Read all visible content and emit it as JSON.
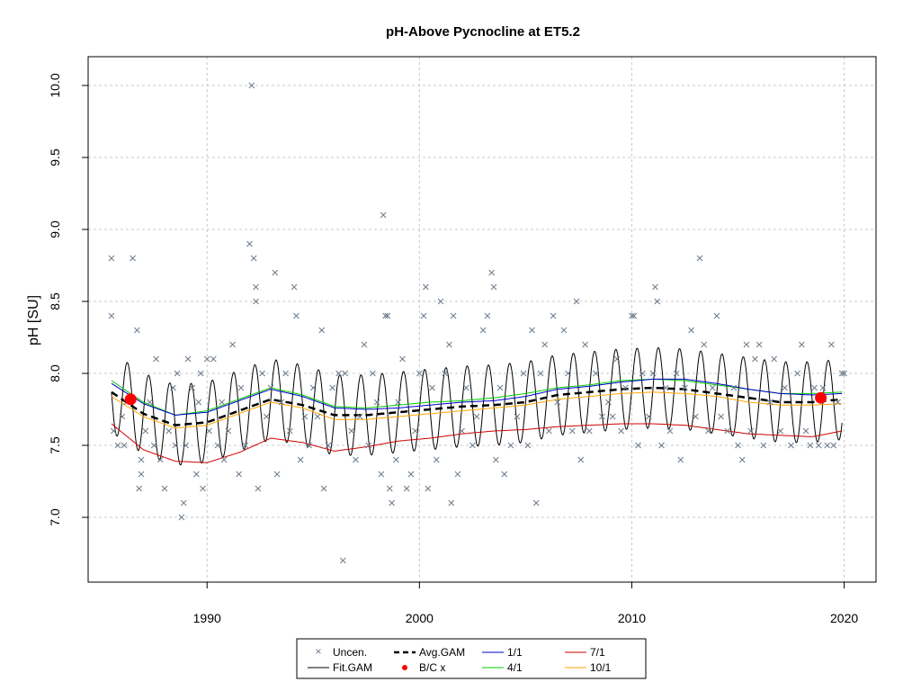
{
  "chart_data": {
    "type": "line",
    "title": "pH-Above Pycnocline at ET5.2",
    "xlabel": "",
    "ylabel": "pH [SU]",
    "xlim": [
      1984.4,
      2021.5
    ],
    "ylim": [
      6.55,
      10.2
    ],
    "x_ticks": [
      1990,
      2000,
      2010,
      2020
    ],
    "y_ticks": [
      7.0,
      7.5,
      8.0,
      8.5,
      9.0,
      9.5,
      10.0
    ],
    "grid": true,
    "legend": {
      "placement": "bottom-center",
      "entries": [
        {
          "label": "Uncen.",
          "symbol": "x",
          "color": "#6b7b8c"
        },
        {
          "label": "Fit.GAM",
          "symbol": "line",
          "color": "#000000"
        },
        {
          "label": "Avg.GAM",
          "symbol": "dashed",
          "color": "#000000"
        },
        {
          "label": "B/C x",
          "symbol": "dot",
          "color": "#ff0000"
        },
        {
          "label": "1/1",
          "symbol": "line",
          "color": "#0000cc"
        },
        {
          "label": "4/1",
          "symbol": "line",
          "color": "#00cc00"
        },
        {
          "label": "7/1",
          "symbol": "line",
          "color": "#cc0000"
        },
        {
          "label": "10/1",
          "symbol": "line",
          "color": "#ffa500"
        }
      ]
    },
    "series": [
      {
        "name": "Avg.GAM",
        "style": "dashed",
        "color": "#000000",
        "x": [
          1985.5,
          1987,
          1988.5,
          1990,
          1991.5,
          1993,
          1994.5,
          1996,
          1997.5,
          1999,
          2000.5,
          2002,
          2003.5,
          2005,
          2006.5,
          2008,
          2009.5,
          2011,
          2012.5,
          2014,
          2015.5,
          2017,
          2018.5,
          2019.9
        ],
        "y": [
          7.87,
          7.72,
          7.64,
          7.66,
          7.74,
          7.82,
          7.78,
          7.71,
          7.71,
          7.73,
          7.75,
          7.77,
          7.78,
          7.8,
          7.85,
          7.87,
          7.89,
          7.9,
          7.89,
          7.86,
          7.83,
          7.8,
          7.8,
          7.82
        ]
      },
      {
        "name": "1/1",
        "style": "solid",
        "color": "#0000cc",
        "x": [
          1985.5,
          1987,
          1988.5,
          1990,
          1991.5,
          1993,
          1994.5,
          1996,
          1997.5,
          1999,
          2000.5,
          2002,
          2003.5,
          2005,
          2006.5,
          2008,
          2009.5,
          2011,
          2012.5,
          2014,
          2015.5,
          2017,
          2018.5,
          2019.9
        ],
        "y": [
          7.93,
          7.79,
          7.71,
          7.73,
          7.81,
          7.89,
          7.84,
          7.76,
          7.75,
          7.76,
          7.78,
          7.8,
          7.81,
          7.84,
          7.89,
          7.91,
          7.94,
          7.96,
          7.96,
          7.93,
          7.89,
          7.86,
          7.85,
          7.86
        ]
      },
      {
        "name": "4/1",
        "style": "solid",
        "color": "#00cc00",
        "x": [
          1985.5,
          1987,
          1988.5,
          1990,
          1991.5,
          1993,
          1994.5,
          1996,
          1997.5,
          1999,
          2000.5,
          2002,
          2003.5,
          2005,
          2006.5,
          2008,
          2009.5,
          2011,
          2012.5,
          2014,
          2015.5,
          2017,
          2018.5,
          2019.9
        ],
        "y": [
          7.95,
          7.8,
          7.71,
          7.74,
          7.82,
          7.9,
          7.85,
          7.77,
          7.76,
          7.78,
          7.8,
          7.81,
          7.83,
          7.86,
          7.9,
          7.92,
          7.95,
          7.96,
          7.95,
          7.92,
          7.89,
          7.86,
          7.86,
          7.87
        ]
      },
      {
        "name": "10/1",
        "style": "solid",
        "color": "#ffa500",
        "x": [
          1985.5,
          1987,
          1988.5,
          1990,
          1991.5,
          1993,
          1994.5,
          1996,
          1997.5,
          1999,
          2000.5,
          2002,
          2003.5,
          2005,
          2006.5,
          2008,
          2009.5,
          2011,
          2012.5,
          2014,
          2015.5,
          2017,
          2018.5,
          2019.9
        ],
        "y": [
          7.84,
          7.7,
          7.62,
          7.64,
          7.72,
          7.8,
          7.76,
          7.68,
          7.68,
          7.7,
          7.72,
          7.74,
          7.76,
          7.78,
          7.82,
          7.84,
          7.86,
          7.87,
          7.86,
          7.84,
          7.8,
          7.78,
          7.78,
          7.79
        ]
      },
      {
        "name": "7/1",
        "style": "solid",
        "color": "#cc0000",
        "x": [
          1985.5,
          1987,
          1988.5,
          1990,
          1991.5,
          1993,
          1994.5,
          1996,
          1997.5,
          1999,
          2000.5,
          2002,
          2003.5,
          2005,
          2006.5,
          2008,
          2009.5,
          2011,
          2012.5,
          2014,
          2015.5,
          2017,
          2018.5,
          2019.9
        ],
        "y": [
          7.65,
          7.47,
          7.39,
          7.38,
          7.45,
          7.55,
          7.52,
          7.46,
          7.49,
          7.53,
          7.55,
          7.58,
          7.6,
          7.61,
          7.63,
          7.64,
          7.65,
          7.65,
          7.64,
          7.61,
          7.58,
          7.57,
          7.56,
          7.6
        ]
      },
      {
        "name": "Fit.GAM",
        "style": "solid",
        "color": "#000000",
        "seasonal_amplitude": 0.28,
        "x": [
          1985.5,
          1987,
          1988.5,
          1990,
          1991.5,
          1993,
          1994.5,
          1996,
          1997.5,
          1999,
          2000.5,
          2002,
          2003.5,
          2005,
          2006.5,
          2008,
          2009.5,
          2011,
          2012.5,
          2014,
          2015.5,
          2017,
          2018.5,
          2019.9
        ],
        "y": [
          7.87,
          7.72,
          7.64,
          7.66,
          7.74,
          7.82,
          7.78,
          7.71,
          7.71,
          7.73,
          7.75,
          7.77,
          7.78,
          7.8,
          7.85,
          7.87,
          7.89,
          7.9,
          7.89,
          7.86,
          7.83,
          7.8,
          7.8,
          7.82
        ]
      }
    ],
    "bc_points": [
      {
        "x": 1986.4,
        "y": 7.82
      },
      {
        "x": 2018.9,
        "y": 7.83
      }
    ],
    "uncensored_points": [
      [
        1985.5,
        8.8
      ],
      [
        1985.5,
        8.4
      ],
      [
        1985.6,
        7.6
      ],
      [
        1985.8,
        7.5
      ],
      [
        1986.0,
        7.7
      ],
      [
        1986.1,
        7.5
      ],
      [
        1986.2,
        7.8
      ],
      [
        1986.5,
        8.8
      ],
      [
        1986.7,
        8.3
      ],
      [
        1986.8,
        7.2
      ],
      [
        1986.9,
        7.3
      ],
      [
        1986.9,
        7.4
      ],
      [
        1987.1,
        7.6
      ],
      [
        1987.3,
        7.8
      ],
      [
        1987.5,
        7.5
      ],
      [
        1987.6,
        8.1
      ],
      [
        1987.8,
        7.4
      ],
      [
        1988.0,
        7.2
      ],
      [
        1988.2,
        7.6
      ],
      [
        1988.4,
        7.9
      ],
      [
        1988.5,
        7.5
      ],
      [
        1988.6,
        8.0
      ],
      [
        1988.8,
        7.0
      ],
      [
        1988.9,
        7.1
      ],
      [
        1989.0,
        7.5
      ],
      [
        1989.1,
        8.1
      ],
      [
        1989.3,
        7.9
      ],
      [
        1989.5,
        7.3
      ],
      [
        1989.6,
        7.8
      ],
      [
        1989.7,
        8.0
      ],
      [
        1989.8,
        7.2
      ],
      [
        1990.0,
        8.1
      ],
      [
        1990.1,
        7.6
      ],
      [
        1990.3,
        8.1
      ],
      [
        1990.5,
        7.5
      ],
      [
        1990.7,
        7.8
      ],
      [
        1990.8,
        7.4
      ],
      [
        1991.0,
        7.6
      ],
      [
        1991.2,
        8.2
      ],
      [
        1991.5,
        7.3
      ],
      [
        1991.6,
        7.9
      ],
      [
        1991.8,
        7.5
      ],
      [
        1992.0,
        8.9
      ],
      [
        1992.1,
        10.0
      ],
      [
        1992.2,
        8.8
      ],
      [
        1992.3,
        8.6
      ],
      [
        1992.3,
        8.5
      ],
      [
        1992.4,
        7.2
      ],
      [
        1992.6,
        8.0
      ],
      [
        1992.8,
        7.7
      ],
      [
        1993.0,
        7.9
      ],
      [
        1993.2,
        8.7
      ],
      [
        1993.3,
        7.3
      ],
      [
        1993.5,
        7.8
      ],
      [
        1993.7,
        8.0
      ],
      [
        1993.9,
        7.6
      ],
      [
        1994.1,
        8.6
      ],
      [
        1994.2,
        8.4
      ],
      [
        1994.4,
        7.4
      ],
      [
        1994.6,
        7.7
      ],
      [
        1994.8,
        7.5
      ],
      [
        1995.0,
        7.9
      ],
      [
        1995.2,
        7.7
      ],
      [
        1995.4,
        8.3
      ],
      [
        1995.5,
        7.2
      ],
      [
        1995.7,
        7.5
      ],
      [
        1995.9,
        7.9
      ],
      [
        1996.2,
        8.0
      ],
      [
        1996.4,
        6.7
      ],
      [
        1996.5,
        8.0
      ],
      [
        1996.8,
        7.6
      ],
      [
        1997.0,
        7.4
      ],
      [
        1997.2,
        7.7
      ],
      [
        1997.4,
        8.2
      ],
      [
        1997.6,
        7.5
      ],
      [
        1997.8,
        8.0
      ],
      [
        1998.0,
        7.8
      ],
      [
        1998.2,
        7.3
      ],
      [
        1998.3,
        9.1
      ],
      [
        1998.4,
        8.4
      ],
      [
        1998.5,
        8.4
      ],
      [
        1998.6,
        7.2
      ],
      [
        1998.7,
        7.1
      ],
      [
        1998.9,
        7.4
      ],
      [
        1999.0,
        7.8
      ],
      [
        1999.2,
        8.1
      ],
      [
        1999.4,
        7.2
      ],
      [
        1999.6,
        7.3
      ],
      [
        1999.8,
        7.6
      ],
      [
        2000.0,
        8.0
      ],
      [
        2000.2,
        8.4
      ],
      [
        2000.3,
        8.6
      ],
      [
        2000.4,
        7.2
      ],
      [
        2000.6,
        7.9
      ],
      [
        2000.8,
        7.4
      ],
      [
        2001.0,
        8.5
      ],
      [
        2001.2,
        8.0
      ],
      [
        2001.4,
        8.2
      ],
      [
        2001.5,
        7.1
      ],
      [
        2001.6,
        8.4
      ],
      [
        2001.8,
        7.3
      ],
      [
        2002.0,
        7.6
      ],
      [
        2002.2,
        7.9
      ],
      [
        2002.5,
        7.5
      ],
      [
        2002.7,
        7.7
      ],
      [
        2003.0,
        8.3
      ],
      [
        2003.2,
        8.4
      ],
      [
        2003.4,
        8.7
      ],
      [
        2003.5,
        8.6
      ],
      [
        2003.6,
        7.4
      ],
      [
        2003.8,
        7.9
      ],
      [
        2004.0,
        7.3
      ],
      [
        2004.3,
        7.5
      ],
      [
        2004.6,
        7.7
      ],
      [
        2004.9,
        8.0
      ],
      [
        2005.1,
        7.5
      ],
      [
        2005.3,
        8.3
      ],
      [
        2005.5,
        7.1
      ],
      [
        2005.7,
        8.0
      ],
      [
        2005.9,
        8.2
      ],
      [
        2006.1,
        7.6
      ],
      [
        2006.3,
        8.4
      ],
      [
        2006.5,
        7.8
      ],
      [
        2006.8,
        8.3
      ],
      [
        2007.0,
        8.0
      ],
      [
        2007.2,
        7.6
      ],
      [
        2007.4,
        8.5
      ],
      [
        2007.6,
        7.4
      ],
      [
        2007.8,
        8.2
      ],
      [
        2008.0,
        7.6
      ],
      [
        2008.3,
        8.0
      ],
      [
        2008.6,
        7.7
      ],
      [
        2008.9,
        7.8
      ],
      [
        2009.1,
        7.7
      ],
      [
        2009.3,
        8.1
      ],
      [
        2009.5,
        7.6
      ],
      [
        2009.7,
        7.9
      ],
      [
        2010.0,
        8.4
      ],
      [
        2010.1,
        8.4
      ],
      [
        2010.3,
        7.5
      ],
      [
        2010.5,
        8.0
      ],
      [
        2010.8,
        7.7
      ],
      [
        2011.0,
        8.0
      ],
      [
        2011.1,
        8.6
      ],
      [
        2011.2,
        8.5
      ],
      [
        2011.4,
        7.5
      ],
      [
        2011.6,
        7.9
      ],
      [
        2011.8,
        7.6
      ],
      [
        2012.1,
        8.0
      ],
      [
        2012.3,
        7.4
      ],
      [
        2012.5,
        7.9
      ],
      [
        2012.8,
        8.3
      ],
      [
        2013.0,
        7.7
      ],
      [
        2013.2,
        8.8
      ],
      [
        2013.4,
        8.2
      ],
      [
        2013.6,
        7.6
      ],
      [
        2013.8,
        7.9
      ],
      [
        2014.0,
        8.4
      ],
      [
        2014.2,
        7.7
      ],
      [
        2014.5,
        7.6
      ],
      [
        2014.8,
        7.9
      ],
      [
        2015.0,
        7.5
      ],
      [
        2015.2,
        7.4
      ],
      [
        2015.4,
        8.2
      ],
      [
        2015.6,
        7.6
      ],
      [
        2015.8,
        8.1
      ],
      [
        2016.0,
        8.2
      ],
      [
        2016.2,
        7.5
      ],
      [
        2016.5,
        7.8
      ],
      [
        2016.7,
        8.1
      ],
      [
        2017.0,
        7.6
      ],
      [
        2017.2,
        7.9
      ],
      [
        2017.5,
        7.5
      ],
      [
        2017.8,
        8.0
      ],
      [
        2018.0,
        8.2
      ],
      [
        2018.2,
        7.6
      ],
      [
        2018.4,
        7.5
      ],
      [
        2018.6,
        7.9
      ],
      [
        2018.8,
        7.5
      ],
      [
        2019.0,
        7.9
      ],
      [
        2019.2,
        7.5
      ],
      [
        2019.4,
        8.2
      ],
      [
        2019.5,
        7.5
      ],
      [
        2019.7,
        7.8
      ],
      [
        2019.9,
        8.0
      ],
      [
        2020.0,
        8.0
      ]
    ]
  }
}
